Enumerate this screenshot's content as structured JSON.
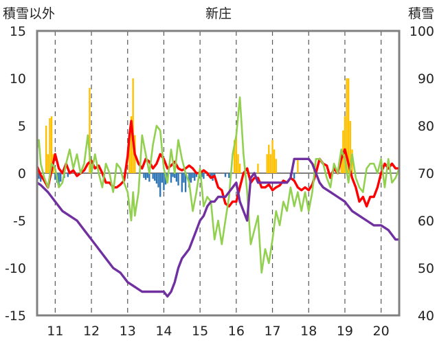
{
  "chart_data": {
    "type": "bar+line",
    "title": "新庄",
    "left_axis_label": "積雪以外",
    "right_axis_label": "積雪",
    "x_tick_labels": [
      "11",
      "12",
      "13",
      "14",
      "15",
      "16",
      "17",
      "18",
      "19",
      "20"
    ],
    "x_range": [
      10.5,
      20.5
    ],
    "left_ylim": [
      -15,
      15
    ],
    "left_yticks": [
      -15,
      -10,
      -5,
      0,
      5,
      10,
      15
    ],
    "right_ylim": [
      40,
      100
    ],
    "right_yticks": [
      40,
      50,
      60,
      70,
      80,
      90,
      100
    ],
    "grid": "dashed vertical at each integer x",
    "colors": {
      "bars_positive": "#FFC000",
      "bars_negative": "#2E75B6",
      "red": "#FF0000",
      "green": "#92D050",
      "purple": "#7030A0",
      "zero_line": "#7F7F7F",
      "frame": "#808080"
    },
    "bars": [
      {
        "x": 10.55,
        "v": -0.6
      },
      {
        "x": 10.6,
        "v": -0.9
      },
      {
        "x": 10.75,
        "v": 5.0
      },
      {
        "x": 10.8,
        "v": 2.0
      },
      {
        "x": 10.85,
        "v": 5.8
      },
      {
        "x": 10.9,
        "v": 6.0
      },
      {
        "x": 10.95,
        "v": 2.0
      },
      {
        "x": 11.0,
        "v": -0.7
      },
      {
        "x": 11.05,
        "v": -1.0
      },
      {
        "x": 11.1,
        "v": -1.5
      },
      {
        "x": 11.15,
        "v": -0.9
      },
      {
        "x": 11.25,
        "v": -0.5
      },
      {
        "x": 11.35,
        "v": -0.4
      },
      {
        "x": 11.95,
        "v": 9.0
      },
      {
        "x": 13.05,
        "v": 3.5
      },
      {
        "x": 13.1,
        "v": 6.0
      },
      {
        "x": 13.15,
        "v": 10.0
      },
      {
        "x": 13.2,
        "v": 4.0
      },
      {
        "x": 13.45,
        "v": -0.5
      },
      {
        "x": 13.5,
        "v": -0.7
      },
      {
        "x": 13.55,
        "v": -0.5
      },
      {
        "x": 13.6,
        "v": -0.9
      },
      {
        "x": 13.7,
        "v": -0.6
      },
      {
        "x": 13.75,
        "v": -0.8
      },
      {
        "x": 13.8,
        "v": -1.1
      },
      {
        "x": 13.85,
        "v": -1.5
      },
      {
        "x": 13.9,
        "v": -2.5
      },
      {
        "x": 13.95,
        "v": -1.0
      },
      {
        "x": 14.0,
        "v": -1.8
      },
      {
        "x": 14.05,
        "v": -1.2
      },
      {
        "x": 14.1,
        "v": -0.7
      },
      {
        "x": 14.2,
        "v": -1.0
      },
      {
        "x": 14.25,
        "v": -0.4
      },
      {
        "x": 14.3,
        "v": -0.5
      },
      {
        "x": 14.35,
        "v": -0.9
      },
      {
        "x": 14.4,
        "v": -1.3
      },
      {
        "x": 14.5,
        "v": -2.0
      },
      {
        "x": 14.55,
        "v": -1.0
      },
      {
        "x": 14.6,
        "v": -2.0
      },
      {
        "x": 14.7,
        "v": -1.5
      },
      {
        "x": 14.75,
        "v": -1.0
      },
      {
        "x": 14.8,
        "v": -0.5
      },
      {
        "x": 14.85,
        "v": -0.8
      },
      {
        "x": 14.9,
        "v": -0.4
      },
      {
        "x": 15.0,
        "v": -0.5
      },
      {
        "x": 15.05,
        "v": -0.4
      },
      {
        "x": 15.1,
        "v": -0.6
      },
      {
        "x": 15.2,
        "v": -0.3
      },
      {
        "x": 15.3,
        "v": -0.5
      },
      {
        "x": 15.35,
        "v": -0.8
      },
      {
        "x": 15.4,
        "v": -0.4
      },
      {
        "x": 15.7,
        "v": -0.4
      },
      {
        "x": 15.8,
        "v": -0.5
      },
      {
        "x": 15.95,
        "v": 3.5
      },
      {
        "x": 16.0,
        "v": 4.0
      },
      {
        "x": 16.05,
        "v": 2.0
      },
      {
        "x": 16.1,
        "v": 1.0
      },
      {
        "x": 16.6,
        "v": 1.0
      },
      {
        "x": 16.85,
        "v": 2.0
      },
      {
        "x": 16.9,
        "v": 3.0
      },
      {
        "x": 16.95,
        "v": 2.0
      },
      {
        "x": 17.0,
        "v": 3.5
      },
      {
        "x": 17.05,
        "v": 2.5
      },
      {
        "x": 17.1,
        "v": 1.5
      },
      {
        "x": 17.5,
        "v": -0.4
      },
      {
        "x": 17.6,
        "v": -0.6
      },
      {
        "x": 17.7,
        "v": 1.5
      },
      {
        "x": 18.15,
        "v": 1.0
      },
      {
        "x": 18.9,
        "v": 2.5
      },
      {
        "x": 18.95,
        "v": 4.5
      },
      {
        "x": 19.0,
        "v": 6.0
      },
      {
        "x": 19.05,
        "v": 10.0
      },
      {
        "x": 19.1,
        "v": 10.0
      },
      {
        "x": 19.15,
        "v": 5.5
      },
      {
        "x": 19.2,
        "v": 2.5
      }
    ],
    "series": [
      {
        "axis": "left",
        "color": "#FF0000",
        "x": [
          10.5,
          10.6,
          10.7,
          10.8,
          10.9,
          11.0,
          11.1,
          11.2,
          11.3,
          11.4,
          11.5,
          11.6,
          11.7,
          11.8,
          11.9,
          12.0,
          12.1,
          12.2,
          12.3,
          12.4,
          12.5,
          12.6,
          12.7,
          12.8,
          12.9,
          13.0,
          13.05,
          13.1,
          13.15,
          13.2,
          13.3,
          13.4,
          13.5,
          13.6,
          13.7,
          13.8,
          13.9,
          14.0,
          14.1,
          14.2,
          14.3,
          14.4,
          14.5,
          14.6,
          14.7,
          14.8,
          14.9,
          15.0,
          15.1,
          15.2,
          15.3,
          15.4,
          15.5,
          15.6,
          15.7,
          15.8,
          15.9,
          16.0,
          16.1,
          16.2,
          16.3,
          16.4,
          16.5,
          16.6,
          16.7,
          16.8,
          16.9,
          17.0,
          17.1,
          17.2,
          17.3,
          17.4,
          17.5,
          17.6,
          17.7,
          17.8,
          17.9,
          18.0,
          18.1,
          18.2,
          18.3,
          18.4,
          18.5,
          18.6,
          18.7,
          18.8,
          18.9,
          19.0,
          19.1,
          19.2,
          19.3,
          19.4,
          19.5,
          19.6,
          19.7,
          19.8,
          19.9,
          20.0,
          20.1,
          20.2,
          20.3,
          20.4,
          20.5
        ],
        "y": [
          0.7,
          -0.2,
          -0.8,
          -1.5,
          0.3,
          2.0,
          0.5,
          0.0,
          1.0,
          0.0,
          0.3,
          -0.3,
          0.0,
          0.3,
          1.0,
          1.3,
          0.5,
          0.8,
          0.0,
          -1.0,
          -1.0,
          -1.5,
          -1.5,
          -1.2,
          -0.8,
          1.8,
          4.0,
          5.5,
          3.5,
          2.0,
          1.0,
          0.5,
          1.5,
          1.2,
          0.5,
          1.0,
          2.0,
          1.5,
          0.5,
          0.8,
          1.2,
          0.5,
          0.3,
          0.5,
          0.8,
          0.5,
          0.0,
          0.0,
          0.3,
          0.0,
          -0.5,
          -0.3,
          -1.5,
          -1.8,
          -3.2,
          -3.5,
          -3.0,
          -3.0,
          -1.5,
          0.0,
          0.5,
          -1.0,
          -0.5,
          -0.5,
          -1.5,
          -1.5,
          -1.2,
          -1.8,
          -1.5,
          -1.3,
          -0.8,
          -1.0,
          -0.5,
          -0.8,
          -1.5,
          -1.8,
          -1.5,
          -1.8,
          -1.2,
          0.0,
          1.5,
          1.0,
          0.8,
          -0.5,
          0.5,
          0.0,
          1.5,
          2.5,
          1.0,
          -0.5,
          -1.5,
          -3.0,
          -2.5,
          -3.5,
          -2.5,
          -2.5,
          -1.5,
          0.0,
          1.0,
          0.5,
          1.0,
          0.5,
          0.5
        ]
      },
      {
        "axis": "left",
        "color": "#92D050",
        "x": [
          10.5,
          10.55,
          10.6,
          10.7,
          10.8,
          10.9,
          11.0,
          11.1,
          11.2,
          11.3,
          11.4,
          11.5,
          11.6,
          11.7,
          11.8,
          11.9,
          12.0,
          12.1,
          12.2,
          12.3,
          12.4,
          12.5,
          12.6,
          12.7,
          12.8,
          12.9,
          13.0,
          13.1,
          13.15,
          13.2,
          13.3,
          13.4,
          13.5,
          13.6,
          13.7,
          13.8,
          13.9,
          14.0,
          14.1,
          14.2,
          14.3,
          14.4,
          14.5,
          14.6,
          14.7,
          14.8,
          14.9,
          15.0,
          15.1,
          15.2,
          15.3,
          15.4,
          15.5,
          15.6,
          15.7,
          15.8,
          15.9,
          16.0,
          16.1,
          16.2,
          16.3,
          16.4,
          16.5,
          16.6,
          16.7,
          16.8,
          16.9,
          17.0,
          17.1,
          17.2,
          17.3,
          17.4,
          17.5,
          17.6,
          17.7,
          17.8,
          17.9,
          18.0,
          18.1,
          18.2,
          18.3,
          18.4,
          18.5,
          18.6,
          18.7,
          18.8,
          18.9,
          19.0,
          19.1,
          19.2,
          19.3,
          19.4,
          19.5,
          19.6,
          19.7,
          19.8,
          19.9,
          20.0,
          20.1,
          20.2,
          20.3,
          20.4,
          20.5
        ],
        "y": [
          2.5,
          3.5,
          1.0,
          -0.5,
          -1.5,
          1.0,
          0.5,
          -1.5,
          -1.0,
          1.0,
          2.5,
          0.5,
          2.0,
          0.0,
          1.0,
          4.0,
          0.0,
          2.0,
          0.0,
          -1.5,
          1.0,
          0.0,
          -2.0,
          1.0,
          0.5,
          -1.0,
          -2.0,
          -5.0,
          -2.0,
          -4.5,
          -2.0,
          4.0,
          2.0,
          0.0,
          3.0,
          5.0,
          4.5,
          0.5,
          -1.0,
          2.5,
          0.0,
          3.5,
          1.5,
          0.0,
          -1.0,
          -4.0,
          -2.0,
          0.5,
          -3.5,
          -2.5,
          -3.0,
          -7.0,
          -5.0,
          -7.5,
          -5.0,
          -2.5,
          2.0,
          4.0,
          8.0,
          2.0,
          -2.0,
          -7.5,
          -6.0,
          -4.5,
          -10.5,
          -8.0,
          -9.5,
          -7.0,
          -4.0,
          -5.5,
          -3.0,
          -4.0,
          -1.5,
          -3.5,
          -2.0,
          -4.0,
          -2.0,
          -4.0,
          -2.0,
          1.5,
          1.5,
          1.0,
          -0.5,
          -1.5,
          1.0,
          0.0,
          2.5,
          1.5,
          -1.0,
          2.0,
          -0.5,
          -1.5,
          -2.0,
          0.5,
          1.0,
          1.0,
          0.0,
          1.5,
          -1.5,
          1.5,
          -1.0,
          -0.5,
          0.5
        ]
      },
      {
        "axis": "right",
        "color": "#7030A0",
        "x": [
          10.5,
          10.6,
          10.8,
          11.0,
          11.2,
          11.4,
          11.6,
          11.8,
          12.0,
          12.2,
          12.4,
          12.6,
          12.8,
          13.0,
          13.2,
          13.4,
          13.6,
          13.8,
          14.0,
          14.1,
          14.2,
          14.3,
          14.4,
          14.5,
          14.6,
          14.7,
          14.8,
          14.9,
          15.0,
          15.1,
          15.2,
          15.3,
          15.4,
          15.5,
          15.6,
          15.7,
          15.8,
          15.9,
          16.0,
          16.1,
          16.2,
          16.3,
          16.4,
          16.5,
          16.6,
          16.7,
          16.8,
          17.0,
          17.2,
          17.4,
          17.5,
          17.6,
          17.7,
          17.8,
          18.0,
          18.1,
          18.2,
          18.3,
          18.4,
          18.6,
          18.8,
          19.0,
          19.2,
          19.4,
          19.6,
          19.8,
          20.0,
          20.2,
          20.4,
          20.5
        ],
        "y": [
          68,
          67.5,
          66,
          64,
          62,
          61,
          60,
          58,
          56,
          54,
          52,
          50,
          49,
          47,
          46,
          45,
          45,
          45,
          45,
          44,
          45,
          47,
          50,
          52,
          53,
          54,
          56,
          58,
          60,
          61,
          63,
          64,
          64,
          65,
          65,
          65,
          66,
          67,
          68,
          64,
          62,
          60,
          69,
          70,
          68,
          68,
          68,
          68,
          68,
          68,
          69,
          73,
          73,
          73,
          73,
          72,
          70,
          68,
          67,
          66,
          65,
          64,
          62,
          61,
          60,
          59,
          59,
          58,
          56,
          56
        ]
      }
    ]
  }
}
